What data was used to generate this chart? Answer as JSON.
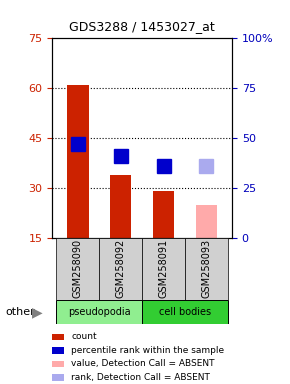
{
  "title": "GDS3288 / 1453027_at",
  "samples": [
    "GSM258090",
    "GSM258092",
    "GSM258091",
    "GSM258093"
  ],
  "groups": [
    "pseudopodia",
    "pseudopodia",
    "cell bodies",
    "cell bodies"
  ],
  "group_colors": {
    "pseudopodia": "#90EE90",
    "cell bodies": "#32CD32"
  },
  "bar_values": [
    61,
    34,
    29,
    null
  ],
  "bar_colors": [
    "#cc2200",
    "#cc2200",
    "#cc2200",
    null
  ],
  "absent_bar_values": [
    null,
    null,
    null,
    25
  ],
  "absent_bar_color": "#ffaaaa",
  "rank_values": [
    47,
    41,
    36,
    null
  ],
  "rank_colors": [
    "#0000cc",
    "#0000cc",
    "#0000cc",
    null
  ],
  "absent_rank_values": [
    null,
    null,
    null,
    36
  ],
  "absent_rank_color": "#aaaaee",
  "ylim_left": [
    15,
    75
  ],
  "ylim_right": [
    0,
    100
  ],
  "yticks_left": [
    15,
    30,
    45,
    60,
    75
  ],
  "yticks_right": [
    0,
    25,
    50,
    75,
    100
  ],
  "ytick_labels_right": [
    "0",
    "25",
    "50",
    "75",
    "100%"
  ],
  "dotted_lines": [
    30,
    45,
    60
  ],
  "left_tick_color": "#cc2200",
  "right_tick_color": "#0000bb",
  "legend_items": [
    {
      "color": "#cc2200",
      "label": "count"
    },
    {
      "color": "#0000cc",
      "label": "percentile rank within the sample"
    },
    {
      "color": "#ffaaaa",
      "label": "value, Detection Call = ABSENT"
    },
    {
      "color": "#aaaaee",
      "label": "rank, Detection Call = ABSENT"
    }
  ],
  "other_label": "other",
  "bar_width": 0.5,
  "marker_size": 10
}
